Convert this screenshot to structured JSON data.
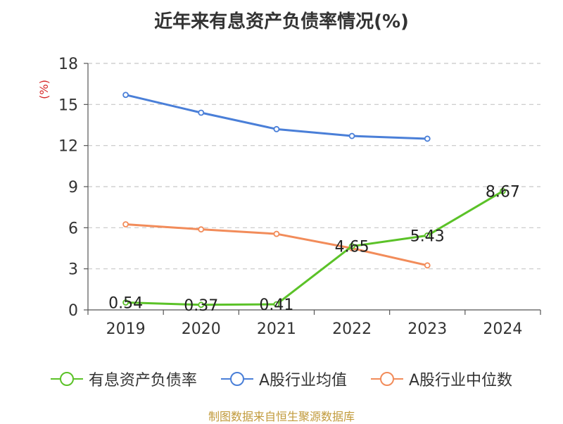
{
  "chart_data": {
    "type": "line",
    "title": "近年来有息资产负债率情况(%)",
    "ylabel": "(%)",
    "xlabel": "",
    "categories": [
      "2019",
      "2020",
      "2021",
      "2022",
      "2023",
      "2024"
    ],
    "ylim": [
      0,
      18
    ],
    "yticks": [
      0,
      3,
      6,
      9,
      12,
      15,
      18
    ],
    "grid": true,
    "legend_position": "bottom",
    "series": [
      {
        "name": "有息资产负债率",
        "color": "#5bc228",
        "values": [
          0.54,
          0.37,
          0.41,
          4.65,
          5.43,
          8.67
        ],
        "labels": [
          "0.54",
          "0.37",
          "0.41",
          "4.65",
          "5.43",
          "8.67"
        ]
      },
      {
        "name": "A股行业均值",
        "color": "#4a7fd8",
        "values": [
          15.7,
          14.4,
          13.2,
          12.7,
          12.5,
          null
        ]
      },
      {
        "name": "A股行业中位数",
        "color": "#f28c5a",
        "values": [
          6.25,
          5.88,
          5.55,
          4.5,
          3.25,
          null
        ]
      }
    ]
  },
  "footer": "制图数据来自恒生聚源数据库"
}
